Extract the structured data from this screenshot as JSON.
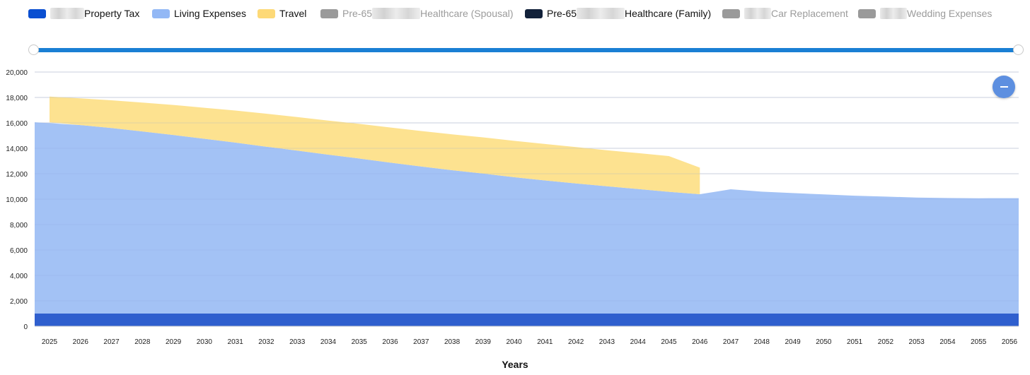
{
  "legend": [
    {
      "label": "Property Tax",
      "color": "#0a4fd1",
      "hidden": false,
      "blur_before": 48
    },
    {
      "label": "Living Expenses",
      "color": "#93b8f5",
      "hidden": false
    },
    {
      "label": "Travel",
      "color": "#fdd977",
      "hidden": false
    },
    {
      "label": "Pre-65",
      "label2": "Healthcare (Spousal)",
      "color": "#9a9a9a",
      "hidden": true,
      "blur_mid": 68
    },
    {
      "label": "Pre-65",
      "label2": "Healthcare (Family)",
      "color": "#12213a",
      "hidden": false,
      "blur_mid": 68
    },
    {
      "label": "Car Replacement",
      "color": "#9a9a9a",
      "hidden": true,
      "blur_before": 38
    },
    {
      "label": "Wedding Expenses",
      "color": "#9a9a9a",
      "hidden": true,
      "blur_before": 38
    }
  ],
  "xaxis_title": "Years",
  "chart_data": {
    "type": "area",
    "stacked": true,
    "x": [
      2025,
      2026,
      2027,
      2028,
      2029,
      2030,
      2031,
      2032,
      2033,
      2034,
      2035,
      2036,
      2037,
      2038,
      2039,
      2040,
      2041,
      2042,
      2043,
      2044,
      2045,
      2046,
      2047,
      2048,
      2049,
      2050,
      2051,
      2052,
      2053,
      2054,
      2055,
      2056
    ],
    "xlabel": "Years",
    "ylabel": "",
    "ylim": [
      0,
      20000
    ],
    "yticks": [
      0,
      2000,
      4000,
      6000,
      8000,
      10000,
      12000,
      14000,
      16000,
      18000,
      20000
    ],
    "ytick_labels": [
      "0",
      "2,000",
      "4,000",
      "6,000",
      "8,000",
      "10,000",
      "12,000",
      "14,000",
      "16,000",
      "18,000",
      "20,000"
    ],
    "grid": true,
    "legend_position": "top",
    "series": [
      {
        "name": "Property Tax",
        "color": "#2f5fce",
        "values": [
          1000,
          1000,
          1000,
          1000,
          1000,
          1000,
          1000,
          1000,
          1000,
          1000,
          1000,
          1000,
          1000,
          1000,
          1000,
          1000,
          1000,
          1000,
          1000,
          1000,
          1000,
          1000,
          1000,
          1000,
          1000,
          1000,
          1000,
          1000,
          1000,
          1000,
          1000,
          1000
        ]
      },
      {
        "name": "Living Expenses",
        "color": "#a3c2f5",
        "values": [
          15050,
          14830,
          14600,
          14330,
          14050,
          13750,
          13450,
          13130,
          12820,
          12500,
          12200,
          11880,
          11570,
          11280,
          11010,
          10730,
          10470,
          10240,
          10010,
          9800,
          9580,
          9390,
          9780,
          9590,
          9480,
          9370,
          9270,
          9200,
          9130,
          9090,
          9070,
          9080
        ]
      },
      {
        "name": "Travel",
        "color": "#fde08a",
        "values": [
          2020,
          2100,
          2180,
          2270,
          2360,
          2440,
          2520,
          2590,
          2640,
          2680,
          2720,
          2760,
          2790,
          2820,
          2850,
          2860,
          2870,
          2860,
          2840,
          2820,
          2810,
          2090,
          0,
          0,
          0,
          0,
          0,
          0,
          0,
          0,
          0,
          0
        ]
      }
    ]
  }
}
